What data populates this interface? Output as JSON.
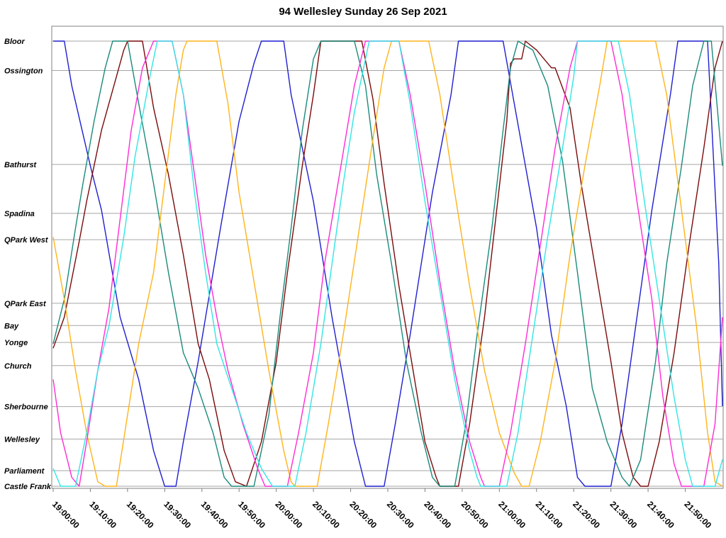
{
  "chart_data": {
    "type": "line",
    "title": "94 Wellesley Sunday 26 Sep 2021",
    "xlabel": "",
    "ylabel": "",
    "x_ticks": [
      "19:00:00",
      "19:10:00",
      "19:20:00",
      "19:30:00",
      "19:40:00",
      "19:50:00",
      "20:00:00",
      "20:10:00",
      "20:20:00",
      "20:30:00",
      "20:40:00",
      "20:50:00",
      "21:00:00",
      "21:10:00",
      "21:20:00",
      "21:30:00",
      "21:40:00",
      "21:50:00"
    ],
    "xlim_minutes": [
      0,
      180
    ],
    "grid": "horizontal at stops",
    "stops": [
      {
        "name": "Bloor",
        "pos": 0.0
      },
      {
        "name": "Ossington",
        "pos": 0.066
      },
      {
        "name": "Bathurst",
        "pos": 0.277
      },
      {
        "name": "Spadina",
        "pos": 0.387
      },
      {
        "name": "QPark West",
        "pos": 0.446
      },
      {
        "name": "QPark East",
        "pos": 0.589
      },
      {
        "name": "Bay",
        "pos": 0.639
      },
      {
        "name": "Yonge",
        "pos": 0.677
      },
      {
        "name": "Church",
        "pos": 0.729
      },
      {
        "name": "Sherbourne",
        "pos": 0.821
      },
      {
        "name": "Wellesley",
        "pos": 0.894
      },
      {
        "name": "Parliament",
        "pos": 0.965
      },
      {
        "name": "Castle Frank",
        "pos": 1.0
      }
    ],
    "series": [
      {
        "color": "#1f1fd0",
        "points": [
          [
            0,
            0
          ],
          [
            3,
            0
          ],
          [
            5,
            0.1
          ],
          [
            10,
            0.28
          ],
          [
            13,
            0.38
          ],
          [
            18,
            0.62
          ],
          [
            23,
            0.76
          ],
          [
            27,
            0.92
          ],
          [
            30,
            1
          ],
          [
            33,
            1
          ],
          [
            35,
            0.9
          ],
          [
            39,
            0.72
          ],
          [
            45,
            0.42
          ],
          [
            50,
            0.18
          ],
          [
            54,
            0.05
          ],
          [
            56,
            0
          ],
          [
            62,
            0
          ],
          [
            64,
            0.12
          ],
          [
            70,
            0.36
          ],
          [
            75,
            0.62
          ],
          [
            81,
            0.9
          ],
          [
            84,
            1
          ],
          [
            89,
            1
          ],
          [
            92,
            0.86
          ],
          [
            96,
            0.66
          ],
          [
            102,
            0.34
          ],
          [
            107,
            0.12
          ],
          [
            109,
            0
          ],
          [
            121,
            0
          ],
          [
            124,
            0.14
          ],
          [
            130,
            0.42
          ],
          [
            134,
            0.66
          ],
          [
            138,
            0.82
          ],
          [
            141,
            0.98
          ],
          [
            143,
            1
          ],
          [
            150,
            1
          ],
          [
            153,
            0.86
          ],
          [
            157,
            0.62
          ],
          [
            161,
            0.38
          ],
          [
            166,
            0.12
          ],
          [
            168,
            0
          ],
          [
            176,
            0
          ],
          [
            179,
            0.5
          ],
          [
            180,
            0.82
          ]
        ]
      },
      {
        "color": "#7a0a0a",
        "points": [
          [
            0,
            0.69
          ],
          [
            3,
            0.62
          ],
          [
            7,
            0.45
          ],
          [
            9,
            0.36
          ],
          [
            13,
            0.2
          ],
          [
            17,
            0.08
          ],
          [
            19,
            0.02
          ],
          [
            20,
            0
          ],
          [
            24,
            0
          ],
          [
            27,
            0.15
          ],
          [
            31,
            0.3
          ],
          [
            35,
            0.48
          ],
          [
            39,
            0.68
          ],
          [
            42,
            0.76
          ],
          [
            46,
            0.92
          ],
          [
            49,
            0.99
          ],
          [
            52,
            1
          ],
          [
            56,
            0.9
          ],
          [
            60,
            0.72
          ],
          [
            63,
            0.52
          ],
          [
            67,
            0.28
          ],
          [
            70,
            0.12
          ],
          [
            72,
            0
          ],
          [
            83,
            0
          ],
          [
            86,
            0.13
          ],
          [
            89,
            0.32
          ],
          [
            93,
            0.55
          ],
          [
            97,
            0.75
          ],
          [
            100,
            0.9
          ],
          [
            103,
            0.98
          ],
          [
            104,
            1
          ],
          [
            109,
            1
          ],
          [
            112,
            0.86
          ],
          [
            116,
            0.62
          ],
          [
            119,
            0.4
          ],
          [
            122,
            0.18
          ],
          [
            123,
            0.05
          ],
          [
            124,
            0.04
          ],
          [
            126,
            0.04
          ],
          [
            127,
            0
          ],
          [
            130,
            0.02
          ],
          [
            134,
            0.06
          ],
          [
            135,
            0.06
          ],
          [
            139,
            0.15
          ],
          [
            142,
            0.32
          ],
          [
            146,
            0.52
          ],
          [
            150,
            0.72
          ],
          [
            153,
            0.88
          ],
          [
            156,
            0.98
          ],
          [
            158,
            1
          ],
          [
            160,
            1
          ],
          [
            163,
            0.9
          ],
          [
            167,
            0.7
          ],
          [
            171,
            0.46
          ],
          [
            175,
            0.24
          ],
          [
            178,
            0.06
          ],
          [
            180,
            0
          ]
        ]
      },
      {
        "color": "#1a8a7a",
        "points": [
          [
            0,
            0.68
          ],
          [
            3,
            0.58
          ],
          [
            6,
            0.42
          ],
          [
            8,
            0.32
          ],
          [
            11,
            0.18
          ],
          [
            14,
            0.06
          ],
          [
            16,
            0
          ],
          [
            20,
            0
          ],
          [
            23,
            0.14
          ],
          [
            27,
            0.32
          ],
          [
            31,
            0.52
          ],
          [
            35,
            0.7
          ],
          [
            39,
            0.78
          ],
          [
            43,
            0.88
          ],
          [
            46,
            0.98
          ],
          [
            48,
            1
          ],
          [
            54,
            1
          ],
          [
            58,
            0.84
          ],
          [
            61,
            0.62
          ],
          [
            64,
            0.42
          ],
          [
            67,
            0.2
          ],
          [
            70,
            0.04
          ],
          [
            72,
            0
          ],
          [
            81,
            0
          ],
          [
            84,
            0.1
          ],
          [
            87,
            0.3
          ],
          [
            91,
            0.5
          ],
          [
            95,
            0.72
          ],
          [
            99,
            0.88
          ],
          [
            102,
            0.98
          ],
          [
            104,
            1
          ],
          [
            108,
            1
          ],
          [
            111,
            0.86
          ],
          [
            114,
            0.66
          ],
          [
            118,
            0.42
          ],
          [
            121,
            0.2
          ],
          [
            123,
            0.06
          ],
          [
            125,
            0
          ],
          [
            129,
            0.02
          ],
          [
            133,
            0.1
          ],
          [
            137,
            0.27
          ],
          [
            141,
            0.52
          ],
          [
            145,
            0.78
          ],
          [
            149,
            0.9
          ],
          [
            153,
            0.98
          ],
          [
            155,
            1
          ],
          [
            158,
            0.94
          ],
          [
            162,
            0.72
          ],
          [
            165,
            0.5
          ],
          [
            169,
            0.28
          ],
          [
            172,
            0.1
          ],
          [
            175,
            0
          ],
          [
            177,
            0
          ],
          [
            180,
            0.28
          ]
        ]
      },
      {
        "color": "#ffb31a",
        "points": [
          [
            0,
            0.44
          ],
          [
            3,
            0.58
          ],
          [
            6,
            0.74
          ],
          [
            9,
            0.88
          ],
          [
            12,
            0.99
          ],
          [
            14,
            1
          ],
          [
            17,
            1
          ],
          [
            20,
            0.84
          ],
          [
            23,
            0.68
          ],
          [
            27,
            0.52
          ],
          [
            30,
            0.32
          ],
          [
            33,
            0.12
          ],
          [
            35,
            0.02
          ],
          [
            36,
            0
          ],
          [
            44,
            0
          ],
          [
            47,
            0.14
          ],
          [
            50,
            0.34
          ],
          [
            54,
            0.54
          ],
          [
            58,
            0.74
          ],
          [
            62,
            0.92
          ],
          [
            64,
            0.99
          ],
          [
            65,
            1
          ],
          [
            71,
            1
          ],
          [
            74,
            0.86
          ],
          [
            78,
            0.66
          ],
          [
            82,
            0.44
          ],
          [
            86,
            0.22
          ],
          [
            89,
            0.06
          ],
          [
            91,
            0
          ],
          [
            101,
            0
          ],
          [
            104,
            0.12
          ],
          [
            108,
            0.34
          ],
          [
            112,
            0.55
          ],
          [
            116,
            0.74
          ],
          [
            120,
            0.88
          ],
          [
            124,
            0.97
          ],
          [
            126,
            1
          ],
          [
            128,
            1
          ],
          [
            131,
            0.9
          ],
          [
            135,
            0.72
          ],
          [
            139,
            0.48
          ],
          [
            143,
            0.28
          ],
          [
            147,
            0.1
          ],
          [
            149,
            0
          ],
          [
            162,
            0
          ],
          [
            165,
            0.12
          ],
          [
            169,
            0.38
          ],
          [
            173,
            0.64
          ],
          [
            176,
            0.88
          ],
          [
            178,
            0.99
          ],
          [
            180,
            1
          ]
        ]
      },
      {
        "color": "#ff2bd6",
        "points": [
          [
            0,
            0.76
          ],
          [
            2,
            0.88
          ],
          [
            5,
            0.98
          ],
          [
            7,
            1
          ],
          [
            9,
            0.9
          ],
          [
            12,
            0.74
          ],
          [
            15,
            0.6
          ],
          [
            18,
            0.4
          ],
          [
            21,
            0.2
          ],
          [
            24,
            0.06
          ],
          [
            27,
            0
          ],
          [
            32,
            0
          ],
          [
            35,
            0.12
          ],
          [
            38,
            0.3
          ],
          [
            41,
            0.48
          ],
          [
            44,
            0.62
          ],
          [
            47,
            0.74
          ],
          [
            51,
            0.86
          ],
          [
            55,
            0.96
          ],
          [
            57,
            1
          ],
          [
            63,
            1
          ],
          [
            66,
            0.88
          ],
          [
            70,
            0.7
          ],
          [
            73,
            0.5
          ],
          [
            77,
            0.3
          ],
          [
            81,
            0.1
          ],
          [
            84,
            0
          ],
          [
            93,
            0
          ],
          [
            96,
            0.12
          ],
          [
            100,
            0.32
          ],
          [
            104,
            0.54
          ],
          [
            108,
            0.74
          ],
          [
            112,
            0.9
          ],
          [
            115,
            0.98
          ],
          [
            116,
            1
          ],
          [
            120,
            1
          ],
          [
            123,
            0.88
          ],
          [
            127,
            0.68
          ],
          [
            131,
            0.46
          ],
          [
            135,
            0.24
          ],
          [
            139,
            0.06
          ],
          [
            141,
            0
          ],
          [
            150,
            0
          ],
          [
            153,
            0.12
          ],
          [
            157,
            0.36
          ],
          [
            161,
            0.58
          ],
          [
            164,
            0.8
          ],
          [
            167,
            0.95
          ],
          [
            169,
            1
          ],
          [
            175,
            1
          ],
          [
            178,
            0.86
          ],
          [
            180,
            0.62
          ]
        ]
      },
      {
        "color": "#33e5e5",
        "points": [
          [
            0,
            0.96
          ],
          [
            2,
            1
          ],
          [
            6,
            1
          ],
          [
            9,
            0.88
          ],
          [
            12,
            0.74
          ],
          [
            15,
            0.64
          ],
          [
            19,
            0.44
          ],
          [
            22,
            0.26
          ],
          [
            26,
            0.08
          ],
          [
            28,
            0
          ],
          [
            32,
            0
          ],
          [
            35,
            0.12
          ],
          [
            38,
            0.34
          ],
          [
            41,
            0.52
          ],
          [
            44,
            0.68
          ],
          [
            48,
            0.78
          ],
          [
            52,
            0.88
          ],
          [
            56,
            0.96
          ],
          [
            59,
            1
          ],
          [
            65,
            1
          ],
          [
            68,
            0.88
          ],
          [
            72,
            0.68
          ],
          [
            75,
            0.5
          ],
          [
            78,
            0.32
          ],
          [
            81,
            0.16
          ],
          [
            84,
            0.04
          ],
          [
            85,
            0
          ],
          [
            93,
            0
          ],
          [
            96,
            0.14
          ],
          [
            100,
            0.36
          ],
          [
            104,
            0.56
          ],
          [
            108,
            0.76
          ],
          [
            112,
            0.92
          ],
          [
            114,
            0.98
          ],
          [
            115,
            1
          ],
          [
            122,
            1
          ],
          [
            125,
            0.88
          ],
          [
            129,
            0.66
          ],
          [
            133,
            0.44
          ],
          [
            137,
            0.24
          ],
          [
            140,
            0.08
          ],
          [
            141,
            0
          ],
          [
            152,
            0
          ],
          [
            155,
            0.12
          ],
          [
            159,
            0.36
          ],
          [
            163,
            0.58
          ],
          [
            167,
            0.8
          ],
          [
            170,
            0.94
          ],
          [
            172,
            1
          ],
          [
            178,
            1
          ],
          [
            180,
            0.94
          ]
        ]
      }
    ]
  }
}
